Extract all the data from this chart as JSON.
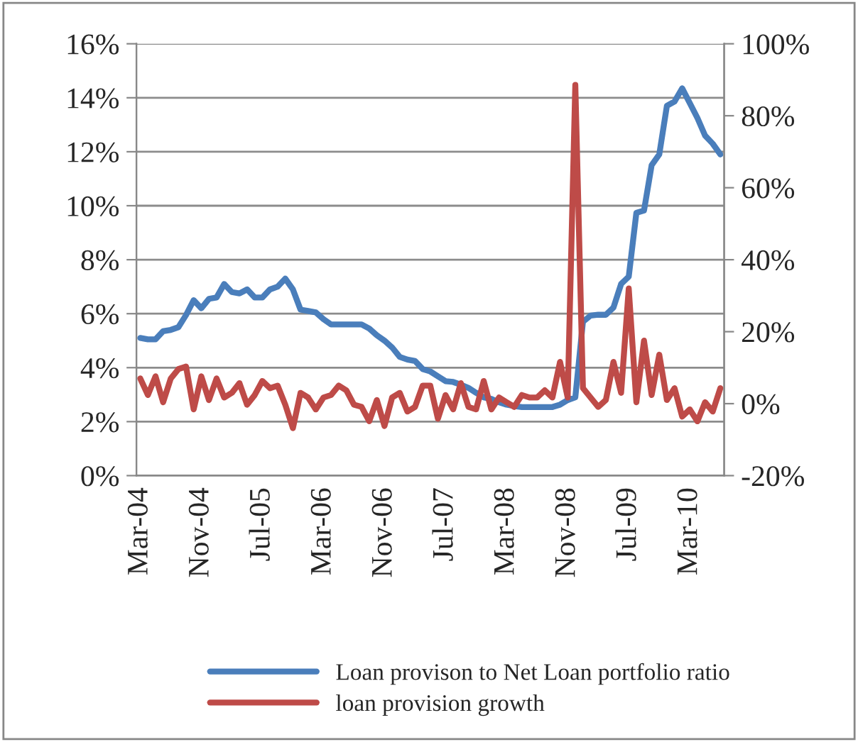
{
  "chart_data": {
    "type": "line",
    "categories": [
      "Mar-04",
      null,
      null,
      null,
      null,
      null,
      null,
      null,
      "Nov-04",
      null,
      null,
      null,
      null,
      null,
      null,
      null,
      "Jul-05",
      null,
      null,
      null,
      null,
      null,
      null,
      null,
      "Mar-06",
      null,
      null,
      null,
      null,
      null,
      null,
      null,
      "Nov-06",
      null,
      null,
      null,
      null,
      null,
      null,
      null,
      "Jul-07",
      null,
      null,
      null,
      null,
      null,
      null,
      null,
      "Mar-08",
      null,
      null,
      null,
      null,
      null,
      null,
      null,
      "Nov-08",
      null,
      null,
      null,
      null,
      null,
      null,
      null,
      "Jul-09",
      null,
      null,
      null,
      null,
      null,
      null,
      null,
      "Mar-10",
      null,
      null,
      null,
      null
    ],
    "series": [
      {
        "name": "Loan provison to Net Loan portfolio ratio",
        "color": "#4a7ebb",
        "values": [
          5.1,
          5.05,
          5.05,
          5.35,
          5.4,
          5.5,
          5.95,
          6.5,
          6.2,
          6.55,
          6.6,
          7.1,
          6.8,
          6.75,
          6.9,
          6.6,
          6.6,
          6.9,
          7.0,
          7.3,
          6.9,
          6.15,
          6.1,
          6.05,
          5.8,
          5.6,
          5.6,
          5.6,
          5.6,
          5.6,
          5.45,
          5.2,
          5.0,
          4.75,
          4.4,
          4.3,
          4.25,
          3.95,
          3.86,
          3.68,
          3.5,
          3.47,
          3.37,
          3.25,
          3.07,
          2.9,
          2.84,
          2.72,
          2.63,
          2.58,
          2.54,
          2.54,
          2.54,
          2.54,
          2.54,
          2.63,
          2.8,
          2.9,
          5.7,
          5.93,
          5.96,
          5.96,
          6.23,
          7.1,
          7.37,
          9.74,
          9.82,
          11.5,
          11.9,
          13.7,
          13.86,
          14.35,
          13.8,
          13.25,
          12.6,
          12.3,
          11.9
        ]
      },
      {
        "name": "loan provision growth",
        "color": "#be4b48",
        "axis": "y2",
        "values": [
          7,
          2.4,
          7.6,
          0.4,
          7,
          9.6,
          10.3,
          -1.6,
          7.6,
          1,
          7,
          1.7,
          3,
          5.7,
          -0.3,
          2.4,
          6.3,
          4.3,
          5,
          -0.3,
          -6.8,
          3,
          1.7,
          -1.6,
          1.7,
          2.4,
          5,
          3.7,
          -0.3,
          -0.9,
          -4.9,
          1,
          -6.2,
          1.7,
          3,
          -2.2,
          -0.9,
          5,
          5,
          -4.2,
          2.4,
          -1.6,
          5.7,
          -0.9,
          -1.6,
          6.3,
          -1.6,
          1.7,
          0.4,
          -0.9,
          2.4,
          1.7,
          1.7,
          3.7,
          1.7,
          11.6,
          1.7,
          88.6,
          4.3,
          1.7,
          -0.9,
          1,
          11.6,
          3,
          32,
          0.4,
          17.5,
          2.4,
          13.6,
          1,
          4.3,
          -3.6,
          -1.6,
          -4.9,
          0.4,
          -2.2,
          4.3
        ]
      }
    ],
    "ylim": [
      0,
      16
    ],
    "yticks": [
      {
        "value": 0,
        "label": "0%"
      },
      {
        "value": 2,
        "label": "2%"
      },
      {
        "value": 4,
        "label": "4%"
      },
      {
        "value": 6,
        "label": "6%"
      },
      {
        "value": 8,
        "label": "8%"
      },
      {
        "value": 10,
        "label": "10%"
      },
      {
        "value": 12,
        "label": "12%"
      },
      {
        "value": 14,
        "label": "14%"
      },
      {
        "value": 16,
        "label": "16%"
      }
    ],
    "y2lim": [
      -20,
      100
    ],
    "y2ticks": [
      {
        "value": -20,
        "label": "-20%"
      },
      {
        "value": 0,
        "label": "0%"
      },
      {
        "value": 20,
        "label": "20%"
      },
      {
        "value": 40,
        "label": "40%"
      },
      {
        "value": 60,
        "label": "60%"
      },
      {
        "value": 80,
        "label": "80%"
      },
      {
        "value": 100,
        "label": "100%"
      }
    ],
    "grid": "y",
    "legend": "bottom",
    "marker": "none",
    "line_style": "solid"
  }
}
